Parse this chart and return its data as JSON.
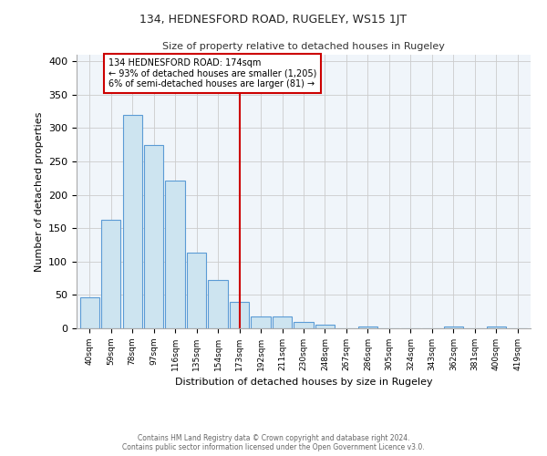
{
  "title": "134, HEDNESFORD ROAD, RUGELEY, WS15 1JT",
  "subtitle": "Size of property relative to detached houses in Rugeley",
  "xlabel": "Distribution of detached houses by size in Rugeley",
  "ylabel": "Number of detached properties",
  "bin_labels": [
    "40sqm",
    "59sqm",
    "78sqm",
    "97sqm",
    "116sqm",
    "135sqm",
    "154sqm",
    "173sqm",
    "192sqm",
    "211sqm",
    "230sqm",
    "248sqm",
    "267sqm",
    "286sqm",
    "305sqm",
    "324sqm",
    "343sqm",
    "362sqm",
    "381sqm",
    "400sqm",
    "419sqm"
  ],
  "bar_heights": [
    47,
    162,
    320,
    275,
    221,
    114,
    72,
    39,
    18,
    18,
    10,
    5,
    0,
    3,
    0,
    0,
    0,
    3,
    0,
    3,
    0
  ],
  "bar_color": "#cde4f0",
  "bar_edge_color": "#5b9bd5",
  "highlight_line_bin": 7,
  "highlight_line_color": "#cc0000",
  "annotation_title": "134 HEDNESFORD ROAD: 174sqm",
  "annotation_line1": "← 93% of detached houses are smaller (1,205)",
  "annotation_line2": "6% of semi-detached houses are larger (81) →",
  "annotation_box_color": "#ffffff",
  "annotation_box_edge_color": "#cc0000",
  "ylim": [
    0,
    410
  ],
  "yticks": [
    0,
    50,
    100,
    150,
    200,
    250,
    300,
    350,
    400
  ],
  "grid_color": "#cccccc",
  "bg_color": "#ffffff",
  "plot_bg_color": "#f0f5fa",
  "footer_line1": "Contains HM Land Registry data © Crown copyright and database right 2024.",
  "footer_line2": "Contains public sector information licensed under the Open Government Licence v3.0."
}
